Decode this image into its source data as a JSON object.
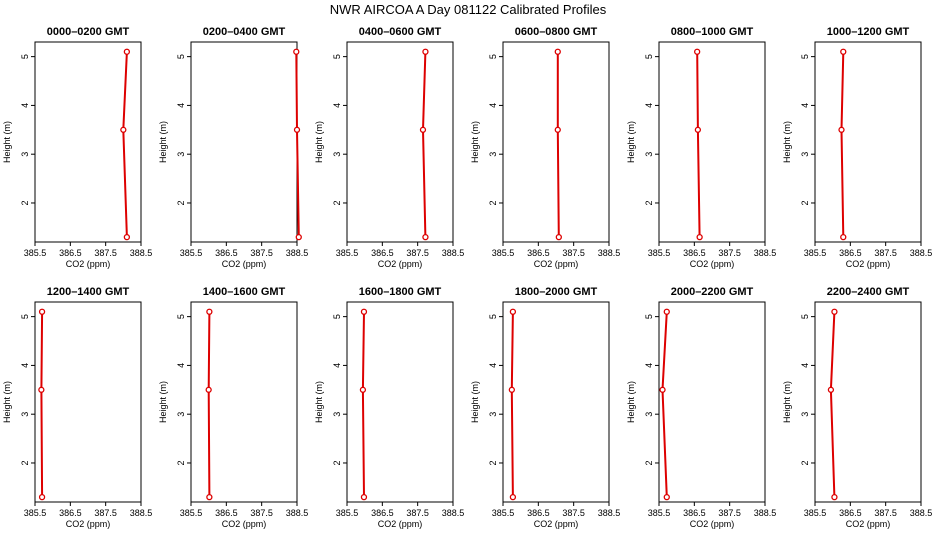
{
  "figure": {
    "title": "NWR AIRCOA A  Day 081122  Calibrated Profiles"
  },
  "colors": {
    "profile": "#dd0000",
    "axis": "#000000"
  },
  "chart_data": [
    {
      "type": "line",
      "title": "0000–0200 GMT",
      "xlabel": "CO2 (ppm)",
      "ylabel": "Height (m)",
      "xlim": [
        385.5,
        388.5
      ],
      "ylim": [
        1.2,
        5.3
      ],
      "xticks": [
        "385.5",
        "386.5",
        "387.5",
        "388.5"
      ],
      "yticks": [
        "2",
        "3",
        "4",
        "5"
      ],
      "series": [
        {
          "x": [
            388.1,
            388.0,
            388.1
          ],
          "y": [
            1.3,
            3.5,
            5.1
          ]
        }
      ]
    },
    {
      "type": "line",
      "title": "0200–0400 GMT",
      "xlabel": "CO2 (ppm)",
      "ylabel": "Height (m)",
      "xlim": [
        385.5,
        388.5
      ],
      "ylim": [
        1.2,
        5.3
      ],
      "xticks": [
        "385.5",
        "386.5",
        "387.5",
        "388.5"
      ],
      "yticks": [
        "2",
        "3",
        "4",
        "5"
      ],
      "series": [
        {
          "x": [
            388.55,
            388.5,
            388.48
          ],
          "y": [
            1.3,
            3.5,
            5.1
          ]
        }
      ]
    },
    {
      "type": "line",
      "title": "0400–0600 GMT",
      "xlabel": "CO2 (ppm)",
      "ylabel": "Height (m)",
      "xlim": [
        385.5,
        388.5
      ],
      "ylim": [
        1.2,
        5.3
      ],
      "xticks": [
        "385.5",
        "386.5",
        "387.5",
        "388.5"
      ],
      "yticks": [
        "2",
        "3",
        "4",
        "5"
      ],
      "series": [
        {
          "x": [
            387.72,
            387.65,
            387.72
          ],
          "y": [
            1.3,
            3.5,
            5.1
          ]
        }
      ]
    },
    {
      "type": "line",
      "title": "0600–0800 GMT",
      "xlabel": "CO2 (ppm)",
      "ylabel": "Height (m)",
      "xlim": [
        385.5,
        388.5
      ],
      "ylim": [
        1.2,
        5.3
      ],
      "xticks": [
        "385.5",
        "386.5",
        "387.5",
        "388.5"
      ],
      "yticks": [
        "2",
        "3",
        "4",
        "5"
      ],
      "series": [
        {
          "x": [
            387.08,
            387.05,
            387.05
          ],
          "y": [
            1.3,
            3.5,
            5.1
          ]
        }
      ]
    },
    {
      "type": "line",
      "title": "0800–1000 GMT",
      "xlabel": "CO2 (ppm)",
      "ylabel": "Height (m)",
      "xlim": [
        385.5,
        388.5
      ],
      "ylim": [
        1.2,
        5.3
      ],
      "xticks": [
        "385.5",
        "386.5",
        "387.5",
        "388.5"
      ],
      "yticks": [
        "2",
        "3",
        "4",
        "5"
      ],
      "series": [
        {
          "x": [
            386.65,
            386.6,
            386.58
          ],
          "y": [
            1.3,
            3.5,
            5.1
          ]
        }
      ]
    },
    {
      "type": "line",
      "title": "1000–1200 GMT",
      "xlabel": "CO2 (ppm)",
      "ylabel": "Height (m)",
      "xlim": [
        385.5,
        388.5
      ],
      "ylim": [
        1.2,
        5.3
      ],
      "xticks": [
        "385.5",
        "386.5",
        "387.5",
        "388.5"
      ],
      "yticks": [
        "2",
        "3",
        "4",
        "5"
      ],
      "series": [
        {
          "x": [
            386.3,
            386.25,
            386.3
          ],
          "y": [
            1.3,
            3.5,
            5.1
          ]
        }
      ]
    },
    {
      "type": "line",
      "title": "1200–1400 GMT",
      "xlabel": "CO2 (ppm)",
      "ylabel": "Height (m)",
      "xlim": [
        385.5,
        388.5
      ],
      "ylim": [
        1.2,
        5.3
      ],
      "xticks": [
        "385.5",
        "386.5",
        "387.5",
        "388.5"
      ],
      "yticks": [
        "2",
        "3",
        "4",
        "5"
      ],
      "series": [
        {
          "x": [
            385.7,
            385.68,
            385.7
          ],
          "y": [
            1.3,
            3.5,
            5.1
          ]
        }
      ]
    },
    {
      "type": "line",
      "title": "1400–1600 GMT",
      "xlabel": "CO2 (ppm)",
      "ylabel": "Height (m)",
      "xlim": [
        385.5,
        388.5
      ],
      "ylim": [
        1.2,
        5.3
      ],
      "xticks": [
        "385.5",
        "386.5",
        "387.5",
        "388.5"
      ],
      "yticks": [
        "2",
        "3",
        "4",
        "5"
      ],
      "series": [
        {
          "x": [
            386.02,
            386.0,
            386.02
          ],
          "y": [
            1.3,
            3.5,
            5.1
          ]
        }
      ]
    },
    {
      "type": "line",
      "title": "1600–1800 GMT",
      "xlabel": "CO2 (ppm)",
      "ylabel": "Height (m)",
      "xlim": [
        385.5,
        388.5
      ],
      "ylim": [
        1.2,
        5.3
      ],
      "xticks": [
        "385.5",
        "386.5",
        "387.5",
        "388.5"
      ],
      "yticks": [
        "2",
        "3",
        "4",
        "5"
      ],
      "series": [
        {
          "x": [
            385.98,
            385.95,
            385.98
          ],
          "y": [
            1.3,
            3.5,
            5.1
          ]
        }
      ]
    },
    {
      "type": "line",
      "title": "1800–2000 GMT",
      "xlabel": "CO2 (ppm)",
      "ylabel": "Height (m)",
      "xlim": [
        385.5,
        388.5
      ],
      "ylim": [
        1.2,
        5.3
      ],
      "xticks": [
        "385.5",
        "386.5",
        "387.5",
        "388.5"
      ],
      "yticks": [
        "2",
        "3",
        "4",
        "5"
      ],
      "series": [
        {
          "x": [
            385.78,
            385.75,
            385.78
          ],
          "y": [
            1.3,
            3.5,
            5.1
          ]
        }
      ]
    },
    {
      "type": "line",
      "title": "2000–2200 GMT",
      "xlabel": "CO2 (ppm)",
      "ylabel": "Height (m)",
      "xlim": [
        385.5,
        388.5
      ],
      "ylim": [
        1.2,
        5.3
      ],
      "xticks": [
        "385.5",
        "386.5",
        "387.5",
        "388.5"
      ],
      "yticks": [
        "2",
        "3",
        "4",
        "5"
      ],
      "series": [
        {
          "x": [
            385.72,
            385.6,
            385.72
          ],
          "y": [
            1.3,
            3.5,
            5.1
          ]
        }
      ]
    },
    {
      "type": "line",
      "title": "2200–2400 GMT",
      "xlabel": "CO2 (ppm)",
      "ylabel": "Height (m)",
      "xlim": [
        385.5,
        388.5
      ],
      "ylim": [
        1.2,
        5.3
      ],
      "xticks": [
        "385.5",
        "386.5",
        "387.5",
        "388.5"
      ],
      "yticks": [
        "2",
        "3",
        "4",
        "5"
      ],
      "series": [
        {
          "x": [
            386.05,
            385.95,
            386.05
          ],
          "y": [
            1.3,
            3.5,
            5.1
          ]
        }
      ]
    }
  ]
}
